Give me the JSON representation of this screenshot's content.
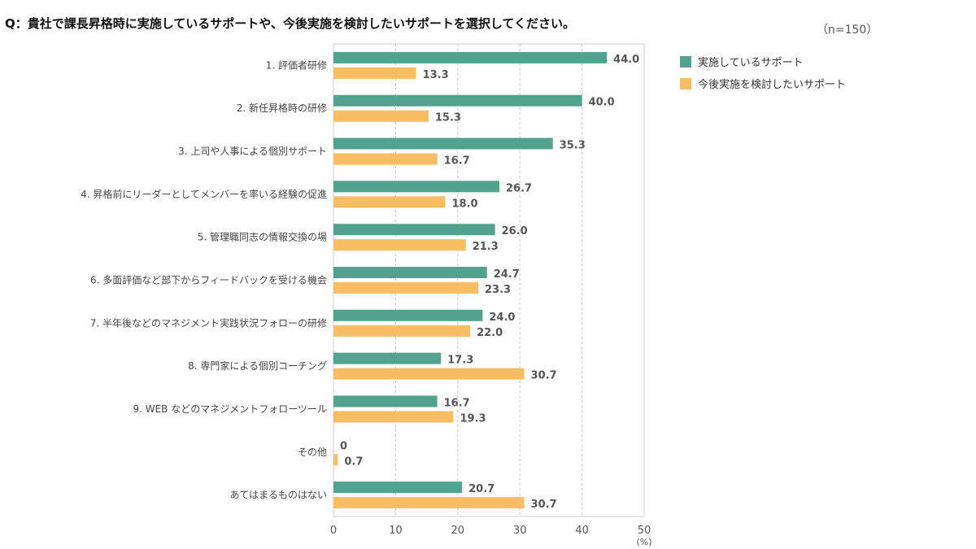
{
  "title": "Q：貴社で課長昇格時に実施しているサポートや、今後実施を検討したいサポートを選択してください。",
  "sample_note": "（n=150）",
  "colors": {
    "implemented": "#52a38e",
    "considering": "#f8bc62"
  },
  "chart_data": {
    "type": "bar",
    "orientation": "horizontal",
    "categories": [
      "1. 評価者研修",
      "2. 新任昇格時の研修",
      "3. 上司や人事による個別サポート",
      "4. 昇格前にリーダーとしてメンバーを率いる経験の促進",
      "5. 管理職同志の情報交換の場",
      "6. 多面評価など部下からフィードバックを受ける機会",
      "7. 半年後などのマネジメント実践状況フォローの研修",
      "8. 専門家による個別コーチング",
      "9. WEB などのマネジメントフォローツール",
      "その他",
      "あてはまるものはない"
    ],
    "series": [
      {
        "name": "実施しているサポート",
        "values": [
          44.0,
          40.0,
          35.3,
          26.7,
          26.0,
          24.7,
          24.0,
          17.3,
          16.7,
          0,
          20.7
        ],
        "labels": [
          "44.0",
          "40.0",
          "35.3",
          "26.7",
          "26.0",
          "24.7",
          "24.0",
          "17.3",
          "16.7",
          "0",
          "20.7"
        ]
      },
      {
        "name": "今後実施を検討したいサポート",
        "values": [
          13.3,
          15.3,
          16.7,
          18.0,
          21.3,
          23.3,
          22.0,
          30.7,
          19.3,
          0.7,
          30.7
        ],
        "labels": [
          "13.3",
          "15.3",
          "16.7",
          "18.0",
          "21.3",
          "23.3",
          "22.0",
          "30.7",
          "19.3",
          "0.7",
          "30.7"
        ]
      }
    ],
    "xlim": [
      0,
      50
    ],
    "xticks": [
      "0",
      "10",
      "20",
      "30",
      "40",
      "50"
    ],
    "xunit": "(%)",
    "grid": true,
    "legend_position": "top-right"
  }
}
